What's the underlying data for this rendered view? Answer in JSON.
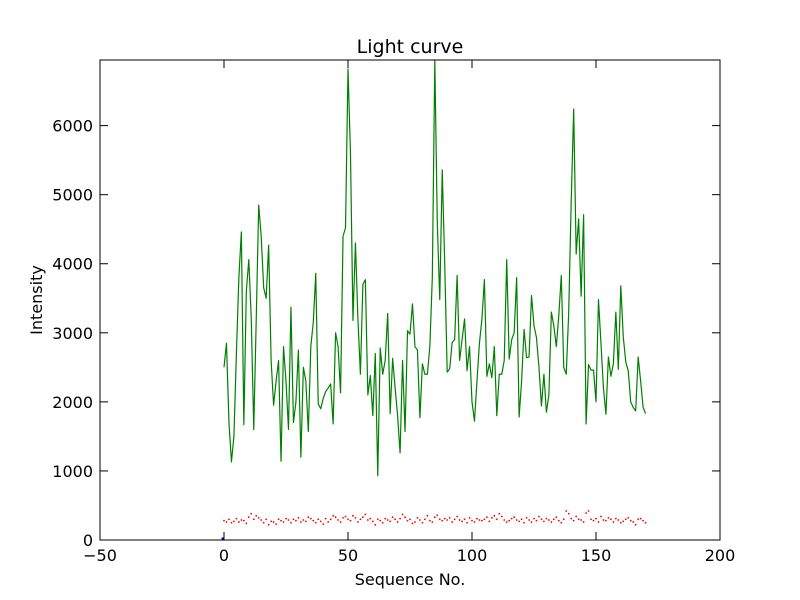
{
  "chart_data": {
    "type": "line",
    "title": "Light curve",
    "xlabel": "Sequence No.",
    "ylabel": "Intensity",
    "xlim": [
      -50,
      200
    ],
    "ylim": [
      0,
      6950
    ],
    "xticks": [
      -50,
      0,
      50,
      100,
      150,
      200
    ],
    "yticks": [
      0,
      1000,
      2000,
      3000,
      4000,
      5000,
      6000
    ],
    "grid": false,
    "series": [
      {
        "style": "solid",
        "color": "#008000",
        "x": [
          0,
          1,
          2,
          3,
          4,
          5,
          6,
          7,
          8,
          9,
          10,
          11,
          12,
          13,
          14,
          15,
          16,
          17,
          18,
          19,
          20,
          21,
          22,
          23,
          24,
          25,
          26,
          27,
          28,
          29,
          30,
          31,
          32,
          33,
          34,
          35,
          36,
          37,
          38,
          39,
          40,
          41,
          42,
          43,
          44,
          45,
          46,
          47,
          48,
          49,
          50,
          51,
          52,
          53,
          54,
          55,
          56,
          57,
          58,
          59,
          60,
          61,
          62,
          63,
          64,
          65,
          66,
          67,
          68,
          69,
          70,
          71,
          72,
          73,
          74,
          75,
          76,
          77,
          78,
          79,
          80,
          81,
          82,
          83,
          84,
          85,
          86,
          87,
          88,
          89,
          90,
          91,
          92,
          93,
          94,
          95,
          96,
          97,
          98,
          99,
          100,
          101,
          102,
          103,
          104,
          105,
          106,
          107,
          108,
          109,
          110,
          111,
          112,
          113,
          114,
          115,
          116,
          117,
          118,
          119,
          120,
          121,
          122,
          123,
          124,
          125,
          126,
          127,
          128,
          129,
          130,
          131,
          132,
          133,
          134,
          135,
          136,
          137,
          138,
          139,
          140,
          141,
          142,
          143,
          144,
          145,
          146,
          147,
          148,
          149,
          150,
          151,
          152,
          153,
          154,
          155,
          156,
          157,
          158,
          159,
          160,
          161,
          162,
          163,
          164,
          165,
          166,
          167,
          168,
          169,
          170
        ],
        "values": [
          2500,
          2850,
          1700,
          1130,
          1500,
          2700,
          3800,
          4460,
          1670,
          3600,
          4060,
          3200,
          1600,
          3200,
          4850,
          4400,
          3650,
          3500,
          4270,
          2600,
          1950,
          2300,
          2600,
          1140,
          2800,
          2300,
          1600,
          3370,
          1700,
          2000,
          2750,
          1200,
          2500,
          2300,
          1570,
          2800,
          3150,
          3860,
          1970,
          1900,
          2050,
          2150,
          2200,
          2260,
          1680,
          3000,
          2800,
          2130,
          4400,
          4520,
          6820,
          5600,
          3180,
          4300,
          3200,
          2400,
          3700,
          3770,
          2100,
          2380,
          1800,
          2700,
          930,
          2780,
          2400,
          2600,
          3280,
          1830,
          2630,
          2200,
          1800,
          1260,
          2600,
          1570,
          3030,
          2980,
          3420,
          2800,
          2750,
          1770,
          2550,
          2400,
          2400,
          2800,
          3800,
          6950,
          4600,
          3480,
          5360,
          4000,
          2430,
          2480,
          2860,
          2900,
          3830,
          2600,
          2900,
          3200,
          2450,
          2800,
          2000,
          1720,
          2300,
          2850,
          3200,
          3770,
          2370,
          2550,
          2350,
          2800,
          1800,
          2400,
          2400,
          2600,
          4060,
          2620,
          2900,
          3000,
          3800,
          1780,
          2300,
          3050,
          2640,
          2650,
          3540,
          3100,
          2930,
          2500,
          1940,
          2400,
          1850,
          2100,
          3300,
          3100,
          2800,
          3250,
          3830,
          2500,
          2400,
          3300,
          4900,
          6240,
          4140,
          4650,
          3530,
          4710,
          1680,
          2540,
          2460,
          2460,
          2000,
          3480,
          2850,
          2200,
          1820,
          2650,
          2370,
          2550,
          3300,
          2470,
          3680,
          2940,
          2580,
          2450,
          2000,
          1920,
          1870,
          2650,
          2300,
          1920,
          1830
        ]
      },
      {
        "style": "dotted",
        "color": "#ff0000",
        "x": [
          0,
          1,
          2,
          3,
          4,
          5,
          6,
          7,
          8,
          9,
          10,
          11,
          12,
          13,
          14,
          15,
          16,
          17,
          18,
          19,
          20,
          21,
          22,
          23,
          24,
          25,
          26,
          27,
          28,
          29,
          30,
          31,
          32,
          33,
          34,
          35,
          36,
          37,
          38,
          39,
          40,
          41,
          42,
          43,
          44,
          45,
          46,
          47,
          48,
          49,
          50,
          51,
          52,
          53,
          54,
          55,
          56,
          57,
          58,
          59,
          60,
          61,
          62,
          63,
          64,
          65,
          66,
          67,
          68,
          69,
          70,
          71,
          72,
          73,
          74,
          75,
          76,
          77,
          78,
          79,
          80,
          81,
          82,
          83,
          84,
          85,
          86,
          87,
          88,
          89,
          90,
          91,
          92,
          93,
          94,
          95,
          96,
          97,
          98,
          99,
          100,
          101,
          102,
          103,
          104,
          105,
          106,
          107,
          108,
          109,
          110,
          111,
          112,
          113,
          114,
          115,
          116,
          117,
          118,
          119,
          120,
          121,
          122,
          123,
          124,
          125,
          126,
          127,
          128,
          129,
          130,
          131,
          132,
          133,
          134,
          135,
          136,
          137,
          138,
          139,
          140,
          141,
          142,
          143,
          144,
          145,
          146,
          147,
          148,
          149,
          150,
          151,
          152,
          153,
          154,
          155,
          156,
          157,
          158,
          159,
          160,
          161,
          162,
          163,
          164,
          165,
          166,
          167,
          168,
          169,
          170
        ],
        "values": [
          280,
          260,
          300,
          250,
          270,
          310,
          260,
          290,
          280,
          240,
          330,
          380,
          300,
          350,
          320,
          290,
          250,
          300,
          220,
          270,
          260,
          230,
          300,
          280,
          260,
          310,
          290,
          250,
          300,
          280,
          320,
          260,
          290,
          270,
          330,
          310,
          280,
          250,
          300,
          270,
          230,
          310,
          260,
          300,
          350,
          330,
          290,
          260,
          320,
          340,
          300,
          280,
          350,
          320,
          260,
          300,
          330,
          370,
          290,
          310,
          270,
          220,
          300,
          280,
          250,
          310,
          290,
          270,
          330,
          300,
          260,
          310,
          370,
          330,
          280,
          300,
          240,
          260,
          320,
          290,
          250,
          300,
          350,
          280,
          260,
          330,
          360,
          300,
          280,
          310,
          290,
          320,
          260,
          300,
          340,
          290,
          270,
          300,
          250,
          320,
          280,
          260,
          310,
          290,
          280,
          300,
          330,
          270,
          320,
          350,
          300,
          380,
          340,
          290,
          260,
          280,
          310,
          330,
          290,
          270,
          300,
          250,
          320,
          290,
          260,
          310,
          280,
          340,
          300,
          270,
          310,
          290,
          260,
          300,
          330,
          280,
          250,
          300,
          420,
          380,
          310,
          280,
          340,
          300,
          290,
          260,
          390,
          420,
          300,
          280,
          310,
          260,
          340,
          290,
          280,
          320,
          300,
          260,
          310,
          290,
          250,
          270,
          300,
          320,
          280,
          260,
          220,
          300,
          310,
          280,
          250
        ]
      },
      {
        "style": "solid",
        "color": "#0000ff",
        "x": [
          -1,
          0
        ],
        "values": [
          15,
          15
        ]
      }
    ]
  }
}
